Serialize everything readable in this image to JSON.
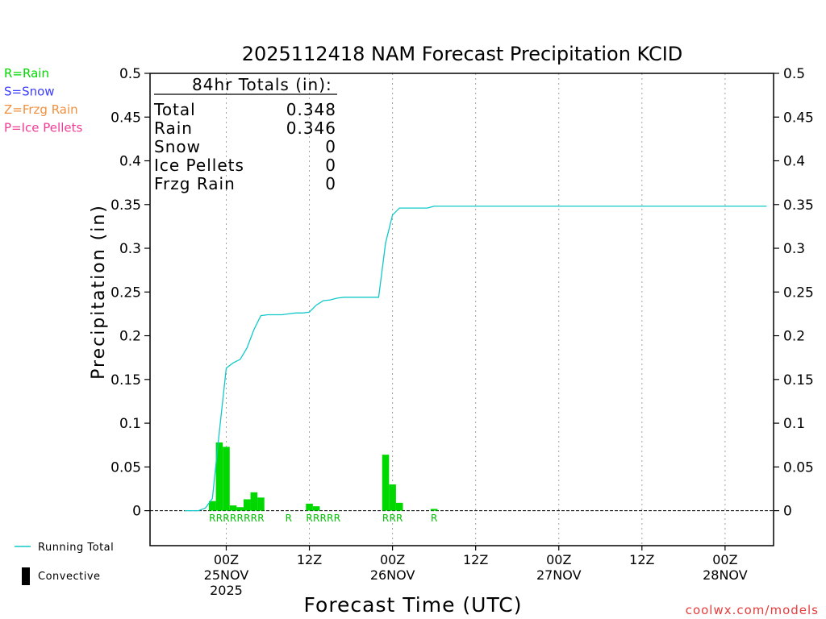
{
  "chart_data": {
    "type": "bar",
    "title": "2025112418 NAM Forecast Precipitation KCID",
    "xlabel": "Forecast Time (UTC)",
    "ylabel": "Precipitation (in)",
    "ylim": [
      -0.04,
      0.5
    ],
    "y_ticks": [
      {
        "v": 0,
        "label": "0"
      },
      {
        "v": 0.05,
        "label": "0.05"
      },
      {
        "v": 0.1,
        "label": "0.1"
      },
      {
        "v": 0.15,
        "label": "0.15"
      },
      {
        "v": 0.2,
        "label": "0.2"
      },
      {
        "v": 0.25,
        "label": "0.25"
      },
      {
        "v": 0.3,
        "label": "0.3"
      },
      {
        "v": 0.35,
        "label": "0.35"
      },
      {
        "v": 0.4,
        "label": "0.4"
      },
      {
        "v": 0.45,
        "label": "0.45"
      },
      {
        "v": 0.5,
        "label": "0.5"
      }
    ],
    "xlim_hours": [
      -5,
      85
    ],
    "x_ticks": [
      {
        "h": 6,
        "lines": [
          "00Z",
          "25NOV",
          "2025"
        ]
      },
      {
        "h": 18,
        "lines": [
          "12Z"
        ]
      },
      {
        "h": 30,
        "lines": [
          "00Z",
          "26NOV"
        ]
      },
      {
        "h": 42,
        "lines": [
          "12Z"
        ]
      },
      {
        "h": 54,
        "lines": [
          "00Z",
          "27NOV"
        ]
      },
      {
        "h": 66,
        "lines": [
          "12Z"
        ]
      },
      {
        "h": 78,
        "lines": [
          "00Z",
          "28NOV"
        ]
      }
    ],
    "bars": {
      "name": "Convective",
      "color": "#00d800",
      "hours": [
        4,
        5,
        6,
        7,
        8,
        9,
        10,
        11,
        18,
        19,
        29,
        30,
        31,
        36
      ],
      "values": [
        0.011,
        0.078,
        0.073,
        0.006,
        0.004,
        0.013,
        0.021,
        0.015,
        0.008,
        0.005,
        0.064,
        0.03,
        0.009,
        0.002
      ]
    },
    "running_total": {
      "name": "Running Total",
      "color": "#10c8c8",
      "hours": [
        0,
        2,
        3,
        4,
        5,
        6,
        7,
        8,
        9,
        10,
        11,
        12,
        13,
        14,
        15,
        16,
        17,
        18,
        19,
        20,
        21,
        22,
        23,
        24,
        25,
        26,
        27,
        28,
        29,
        30,
        31,
        32,
        33,
        34,
        35,
        36,
        84
      ],
      "values": [
        0,
        0,
        0.003,
        0.014,
        0.09,
        0.163,
        0.169,
        0.173,
        0.186,
        0.207,
        0.223,
        0.224,
        0.224,
        0.224,
        0.225,
        0.226,
        0.226,
        0.227,
        0.235,
        0.24,
        0.241,
        0.243,
        0.244,
        0.244,
        0.244,
        0.244,
        0.244,
        0.244,
        0.306,
        0.338,
        0.346,
        0.346,
        0.346,
        0.346,
        0.346,
        0.348,
        0.348
      ]
    },
    "precip_labels": [
      {
        "h": 4,
        "text": "R"
      },
      {
        "h": 5,
        "text": "R"
      },
      {
        "h": 6,
        "text": "R"
      },
      {
        "h": 7,
        "text": "R"
      },
      {
        "h": 8,
        "text": "R"
      },
      {
        "h": 9,
        "text": "R"
      },
      {
        "h": 10,
        "text": "R"
      },
      {
        "h": 11,
        "text": "R"
      },
      {
        "h": 15,
        "text": "R"
      },
      {
        "h": 18,
        "text": "R"
      },
      {
        "h": 19,
        "text": "R"
      },
      {
        "h": 20,
        "text": "R"
      },
      {
        "h": 21,
        "text": "R"
      },
      {
        "h": 22,
        "text": "R"
      },
      {
        "h": 29,
        "text": "R"
      },
      {
        "h": 30,
        "text": "R"
      },
      {
        "h": 31,
        "text": "R"
      },
      {
        "h": 36,
        "text": "R"
      }
    ],
    "type_legend": [
      {
        "text": "R=Rain",
        "color": "#00d800"
      },
      {
        "text": "S=Snow",
        "color": "#3c3cff"
      },
      {
        "text": "Z=Frzg Rain",
        "color": "#f09040"
      },
      {
        "text": "P=Ice Pellets",
        "color": "#f03c96"
      }
    ],
    "totals_box": {
      "heading": "84hr Totals (in):",
      "rows": [
        {
          "label": "Total",
          "value": "0.348"
        },
        {
          "label": "Rain",
          "value": "0.346"
        },
        {
          "label": "Snow",
          "value": "0"
        },
        {
          "label": "Ice Pellets",
          "value": "0"
        },
        {
          "label": "Frzg Rain",
          "value": "0"
        }
      ]
    },
    "legend": [
      {
        "text": "Running Total",
        "kind": "line",
        "color": "#10c8c8"
      },
      {
        "text": "Convective",
        "kind": "bar",
        "color": "#000000"
      }
    ],
    "credit": "coolwx.com/models",
    "credit_color": "#e63c3c"
  }
}
